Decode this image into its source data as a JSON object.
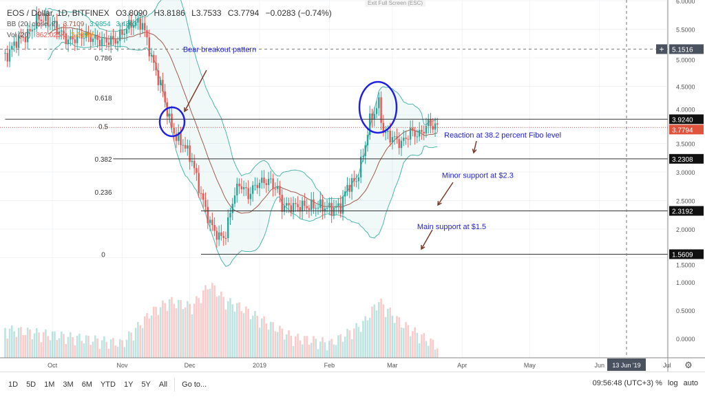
{
  "header": {
    "symbol": "EOS / Dollar, 1D, BITFINEX",
    "open": "O3.8090",
    "high": "H3.8186",
    "low": "L3.7533",
    "close": "C3.7794",
    "change": "−0.0283 (−0.74%)"
  },
  "indicators": {
    "bb_label": "BB (20, close, 2)",
    "bb_mid": "3.7109",
    "bb_upper": "3.9854",
    "bb_lower": "3.4363",
    "vol_label": "Vol (20)",
    "vol_value": "862.025K",
    "vol_ma": "3.039M"
  },
  "exit_fullscreen": "Exit Full Screen (ESC)",
  "toolbar": {
    "timeframes": [
      "1D",
      "5D",
      "1M",
      "3M",
      "6M",
      "YTD",
      "1Y",
      "5Y",
      "All"
    ],
    "goto": "Go to...",
    "clock": "09:56:48 (UTC+3)",
    "percent": "%",
    "log": "log",
    "auto": "auto"
  },
  "colors": {
    "up": "#26a69a",
    "down": "#ef5350",
    "band": "#4db6ac",
    "basis": "#a05a4a",
    "annotation": "#2020e0",
    "arrow": "#7b3a2a",
    "last_price": "#e0533d"
  },
  "chart_data": {
    "type": "candlestick",
    "symbol": "EOS/USD",
    "interval": "1D",
    "y_ticks": [
      6.0,
      5.5,
      5.0,
      4.5,
      4.0,
      3.5,
      3.0,
      2.5,
      2.0,
      1.5
    ],
    "y_tick_labels": [
      "6.0000",
      "5.5000",
      "5.0000",
      "4.5000",
      "4.0000",
      "3.5000",
      "3.0000",
      "2.5000",
      "2.0000",
      "1.5000"
    ],
    "ylim": [
      1.0,
      6.0
    ],
    "volume_ticks": [
      "1.0000",
      "0.5000",
      "0.0000"
    ],
    "x_ticks": [
      {
        "label": "Oct",
        "date": "2018-10-01"
      },
      {
        "label": "Nov",
        "date": "2018-11-01"
      },
      {
        "label": "Dec",
        "date": "2018-12-01"
      },
      {
        "label": "2019",
        "date": "2019-01-01"
      },
      {
        "label": "Feb",
        "date": "2019-02-01"
      },
      {
        "label": "Mar",
        "date": "2019-03-01"
      },
      {
        "label": "Apr",
        "date": "2019-04-01"
      },
      {
        "label": "May",
        "date": "2019-05-01"
      },
      {
        "label": "Jun",
        "date": "2019-06-01"
      },
      {
        "label": "Jul",
        "date": "2019-07-01"
      }
    ],
    "crosshair": {
      "price": "5.1516",
      "date_label": "13 Jun '19",
      "date": "2019-06-13"
    },
    "closes": [
      [
        "2018-09-10",
        5.0
      ],
      [
        "2018-09-15",
        5.3
      ],
      [
        "2018-09-20",
        5.4
      ],
      [
        "2018-09-25",
        5.7
      ],
      [
        "2018-10-01",
        5.6
      ],
      [
        "2018-10-08",
        5.3
      ],
      [
        "2018-10-15",
        5.4
      ],
      [
        "2018-10-22",
        5.3
      ],
      [
        "2018-10-29",
        5.3
      ],
      [
        "2018-11-05",
        5.6
      ],
      [
        "2018-11-10",
        5.6
      ],
      [
        "2018-11-14",
        5.0
      ],
      [
        "2018-11-19",
        4.4
      ],
      [
        "2018-11-22",
        3.9
      ],
      [
        "2018-11-25",
        3.6
      ],
      [
        "2018-11-28",
        3.5
      ],
      [
        "2018-12-02",
        3.2
      ],
      [
        "2018-12-06",
        2.6
      ],
      [
        "2018-12-10",
        2.1
      ],
      [
        "2018-12-14",
        1.85
      ],
      [
        "2018-12-17",
        1.9
      ],
      [
        "2018-12-20",
        2.5
      ],
      [
        "2018-12-23",
        2.8
      ],
      [
        "2018-12-27",
        2.6
      ],
      [
        "2018-12-31",
        2.8
      ],
      [
        "2019-01-05",
        2.85
      ],
      [
        "2019-01-09",
        2.7
      ],
      [
        "2019-01-11",
        2.4
      ],
      [
        "2019-01-16",
        2.4
      ],
      [
        "2019-01-22",
        2.4
      ],
      [
        "2019-01-28",
        2.4
      ],
      [
        "2019-02-02",
        2.35
      ],
      [
        "2019-02-06",
        2.4
      ],
      [
        "2019-02-09",
        2.75
      ],
      [
        "2019-02-13",
        2.85
      ],
      [
        "2019-02-16",
        3.3
      ],
      [
        "2019-02-19",
        3.9
      ],
      [
        "2019-02-23",
        4.2
      ],
      [
        "2019-02-25",
        3.7
      ],
      [
        "2019-03-01",
        3.6
      ],
      [
        "2019-03-05",
        3.5
      ],
      [
        "2019-03-09",
        3.7
      ],
      [
        "2019-03-13",
        3.65
      ],
      [
        "2019-03-17",
        3.85
      ],
      [
        "2019-03-21",
        3.78
      ]
    ],
    "volume": [
      [
        "2018-09-10",
        0.1
      ],
      [
        "2018-10-01",
        0.0
      ],
      [
        "2018-11-01",
        -0.15
      ],
      [
        "2018-11-14",
        0.4
      ],
      [
        "2018-11-22",
        0.6
      ],
      [
        "2018-12-02",
        0.5
      ],
      [
        "2018-12-10",
        0.9
      ],
      [
        "2018-12-17",
        0.6
      ],
      [
        "2018-12-23",
        0.5
      ],
      [
        "2019-01-05",
        0.2
      ],
      [
        "2019-01-16",
        -0.05
      ],
      [
        "2019-02-02",
        -0.15
      ],
      [
        "2019-02-16",
        0.2
      ],
      [
        "2019-02-23",
        0.6
      ],
      [
        "2019-03-05",
        0.2
      ],
      [
        "2019-03-21",
        -0.2
      ]
    ],
    "fib_levels": [
      {
        "label": "0.786",
        "price": 5.0
      },
      {
        "label": "0.618",
        "price": 4.3
      },
      {
        "label": "0.5",
        "price": 3.8
      },
      {
        "label": "0.382",
        "price": 3.2308
      },
      {
        "label": "0.236",
        "price": 2.65
      },
      {
        "label": "0",
        "price": 1.5609
      }
    ],
    "horizontal_lines": [
      {
        "price": 3.924,
        "label": "3.9240",
        "from": "2018-09-10"
      },
      {
        "price": 3.2308,
        "label": "3.2308",
        "from": "2018-10-28"
      },
      {
        "price": 2.3192,
        "label": "2.3192",
        "from": "2018-12-06"
      },
      {
        "price": 1.5609,
        "label": "1.5609",
        "from": "2018-12-06"
      }
    ],
    "last_price": {
      "price": 3.7794,
      "label": "3.7794"
    },
    "annotations": [
      {
        "text": "Bear breakout pattern",
        "date": "2018-11-28",
        "price": 5.1
      },
      {
        "text": "Reaction at 38.2 percent Fibo level",
        "date": "2019-03-24",
        "price": 3.6
      },
      {
        "text": "Minor support at $2.3",
        "date": "2019-03-23",
        "price": 2.9
      },
      {
        "text": "Main support at $1.5",
        "date": "2019-03-12",
        "price": 2.0
      }
    ]
  }
}
